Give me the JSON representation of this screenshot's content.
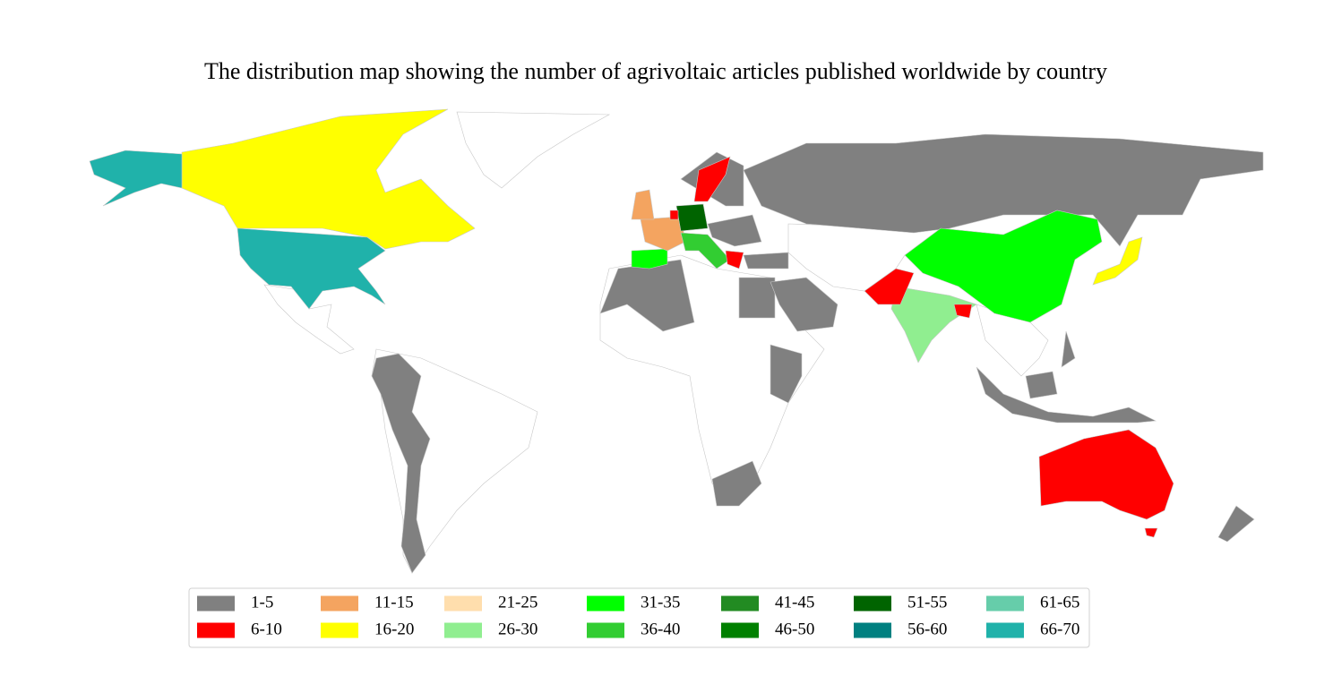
{
  "title": "The distribution map showing the number of agrivoltaic articles published worldwide by country",
  "legend": [
    {
      "label": "1-5",
      "color": "#808080"
    },
    {
      "label": "6-10",
      "color": "#ff0000"
    },
    {
      "label": "11-15",
      "color": "#f4a460"
    },
    {
      "label": "16-20",
      "color": "#ffff00"
    },
    {
      "label": "21-25",
      "color": "#ffdead"
    },
    {
      "label": "26-30",
      "color": "#90ee90"
    },
    {
      "label": "31-35",
      "color": "#00ff00"
    },
    {
      "label": "36-40",
      "color": "#32cd32"
    },
    {
      "label": "41-45",
      "color": "#228b22"
    },
    {
      "label": "46-50",
      "color": "#008000"
    },
    {
      "label": "51-55",
      "color": "#006400"
    },
    {
      "label": "56-60",
      "color": "#008080"
    },
    {
      "label": "61-65",
      "color": "#66cdaa"
    },
    {
      "label": "66-70",
      "color": "#20b2aa"
    }
  ]
}
